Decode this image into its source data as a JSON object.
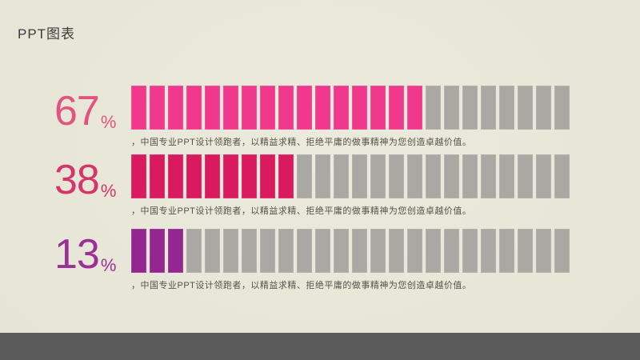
{
  "page": {
    "title": "PPT图表",
    "background_color": "#E7E5D6",
    "footer_color": "#5A5A5A"
  },
  "chart_data": {
    "type": "bar",
    "subtype": "segmented-progress-blocks",
    "title": "PPT图表",
    "unit": "%",
    "segments_per_row": 24,
    "empty_segment_color": "#A9A8A2",
    "caption_color": "#55534A",
    "series": [
      {
        "name": "row-1",
        "value": 67,
        "filled_segments": 16,
        "fill_color": "#F0388C",
        "value_color": "#E25480",
        "caption": "，中国专业PPT设计领跑者，以精益求精、拒绝平庸的做事精神为您创造卓越价值。"
      },
      {
        "name": "row-2",
        "value": 38,
        "filled_segments": 9,
        "fill_color": "#DA1A5F",
        "value_color": "#D53568",
        "caption": "，中国专业PPT设计领跑者，以精益求精、拒绝平庸的做事精神为您创造卓越价值。"
      },
      {
        "name": "row-3",
        "value": 13,
        "filled_segments": 3,
        "fill_color": "#93278F",
        "value_color": "#9C2E98",
        "caption": "，中国专业PPT设计领跑者，以精益求精、拒绝平庸的做事精神为您创造卓越价值。"
      }
    ]
  }
}
